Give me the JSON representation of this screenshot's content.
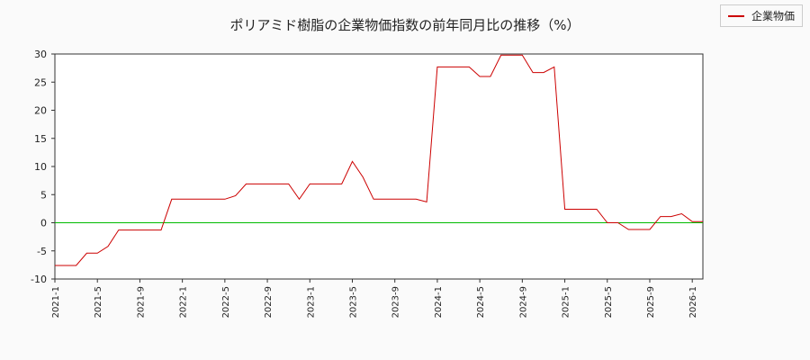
{
  "chart_data": {
    "type": "line",
    "title": "ポリアミド樹脂の企業物価指数の前年同月比の推移（%）",
    "legend": {
      "position": "top-right"
    },
    "grid": true,
    "ylim": [
      -10,
      30
    ],
    "yticks": [
      -10,
      -5,
      0,
      5,
      10,
      15,
      20,
      25,
      30
    ],
    "xlim": [
      "2021-01",
      "2026-02"
    ],
    "xticks": [
      "2021-1",
      "2021-5",
      "2021-9",
      "2022-1",
      "2022-5",
      "2022-9",
      "2023-1",
      "2023-5",
      "2023-9",
      "2024-1",
      "2024-5",
      "2024-9",
      "2025-1",
      "2025-5",
      "2025-9",
      "2026-1"
    ],
    "x": [
      "2021-01",
      "2021-02",
      "2021-03",
      "2021-04",
      "2021-05",
      "2021-06",
      "2021-07",
      "2021-08",
      "2021-09",
      "2021-10",
      "2021-11",
      "2021-12",
      "2022-01",
      "2022-02",
      "2022-03",
      "2022-04",
      "2022-05",
      "2022-06",
      "2022-07",
      "2022-08",
      "2022-09",
      "2022-10",
      "2022-11",
      "2022-12",
      "2023-01",
      "2023-02",
      "2023-03",
      "2023-04",
      "2023-05",
      "2023-06",
      "2023-07",
      "2023-08",
      "2023-09",
      "2023-10",
      "2023-11",
      "2023-12",
      "2024-01",
      "2024-02",
      "2024-03",
      "2024-04",
      "2024-05",
      "2024-06",
      "2024-07",
      "2024-08",
      "2024-09",
      "2024-10",
      "2024-11",
      "2024-12",
      "2025-01",
      "2025-02",
      "2025-03",
      "2025-04",
      "2025-05",
      "2025-06",
      "2025-07",
      "2025-08",
      "2025-09",
      "2025-10",
      "2025-11",
      "2025-12",
      "2026-01",
      "2026-02"
    ],
    "series": [
      {
        "name": "企業物価",
        "color": "#cc0000",
        "values": [
          -7.6,
          -7.6,
          -7.6,
          -5.4,
          -5.4,
          -4.2,
          -1.3,
          -1.3,
          -1.3,
          -1.3,
          -1.3,
          4.2,
          4.2,
          4.2,
          4.2,
          4.2,
          4.2,
          4.8,
          6.9,
          6.9,
          6.9,
          6.9,
          6.9,
          4.2,
          6.9,
          6.9,
          6.9,
          6.9,
          10.9,
          8.1,
          4.2,
          4.2,
          4.2,
          4.2,
          4.2,
          3.7,
          27.7,
          27.7,
          27.7,
          27.7,
          26.0,
          26.0,
          29.8,
          29.8,
          29.8,
          26.7,
          26.7,
          27.7,
          2.4,
          2.4,
          2.4,
          2.4,
          0.0,
          0.0,
          -1.2,
          -1.2,
          -1.2,
          1.1,
          1.1,
          1.6,
          0.2,
          0.2
        ]
      }
    ],
    "reference_line": {
      "value": 0,
      "color": "#00bb00"
    }
  }
}
